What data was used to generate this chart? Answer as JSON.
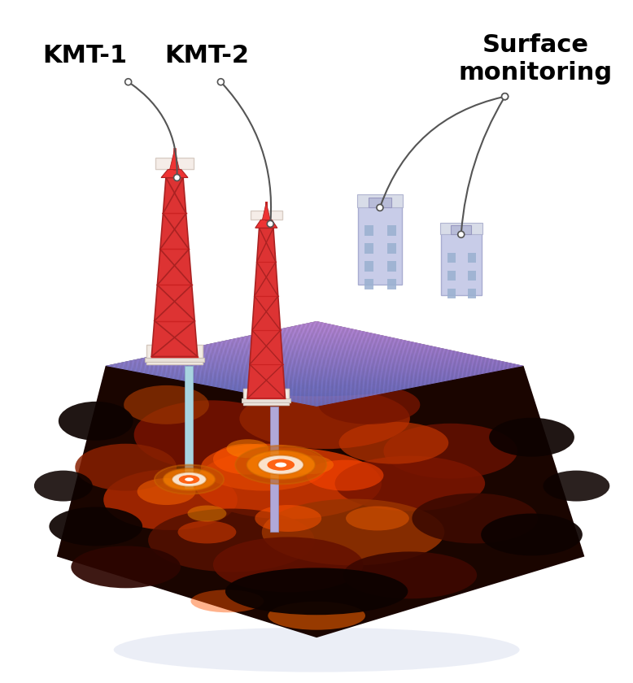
{
  "bg_color": "#ffffff",
  "label_kmt1": "KMT-1",
  "label_kmt2": "KMT-2",
  "label_surface": "Surface\nmonitoring",
  "label_fontsize": 22,
  "label_fontweight": "bold",
  "label_color": "#000000",
  "annotation_color": "#555555",
  "annotation_linewidth": 1.5,
  "shadow_color": "#d0d8e8"
}
